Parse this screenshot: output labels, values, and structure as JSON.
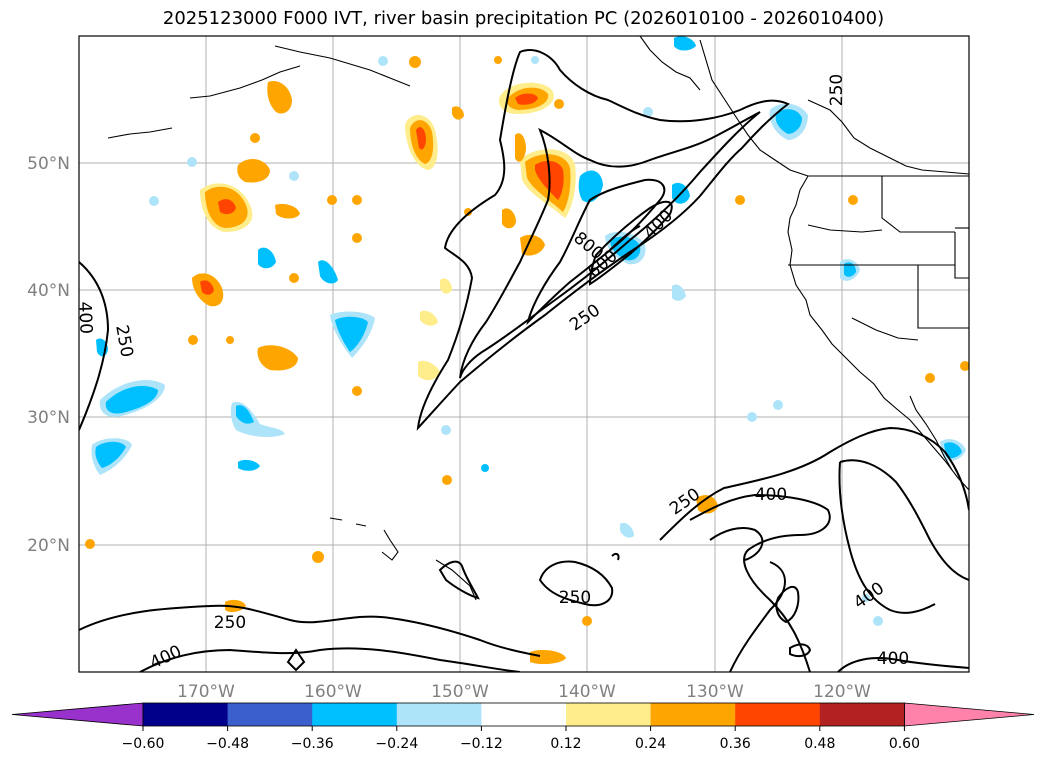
{
  "title": "2025123000 F000 IVT, river basin precipitation PC (2026010100 - 2026010400)",
  "map": {
    "lat_labels": [
      "50°N",
      "40°N",
      "30°N",
      "20°N"
    ],
    "lon_labels": [
      "170°W",
      "160°W",
      "150°W",
      "140°W",
      "130°W",
      "120°W"
    ],
    "contour_labels": [
      {
        "id": "c250-north",
        "text": "250"
      },
      {
        "id": "c250-west",
        "text": "250"
      },
      {
        "id": "c400-west",
        "text": "400"
      },
      {
        "id": "c800",
        "text": "800"
      },
      {
        "id": "c600",
        "text": "600"
      },
      {
        "id": "c400-ar",
        "text": "400"
      },
      {
        "id": "c250-ar",
        "text": "250"
      },
      {
        "id": "c250-sub",
        "text": "250"
      },
      {
        "id": "c400-sub",
        "text": "400"
      },
      {
        "id": "c250-mid",
        "text": "250"
      },
      {
        "id": "c250-sw",
        "text": "250"
      },
      {
        "id": "c400-sw",
        "text": "400"
      },
      {
        "id": "c400-se",
        "text": "400"
      },
      {
        "id": "c400-bottom",
        "text": "400"
      }
    ]
  },
  "colorbar": {
    "colors": [
      "#9932cc",
      "#00008b",
      "#3a5fcd",
      "#00bfff",
      "#aee4fa",
      "#ffffff",
      "#ffec8b",
      "#ffa500",
      "#ff4500",
      "#b22222",
      "#ff82ab"
    ],
    "ticks": [
      "−0.60",
      "−0.48",
      "−0.36",
      "−0.24",
      "−0.12",
      "0.12",
      "0.24",
      "0.36",
      "0.48",
      "0.60"
    ]
  }
}
